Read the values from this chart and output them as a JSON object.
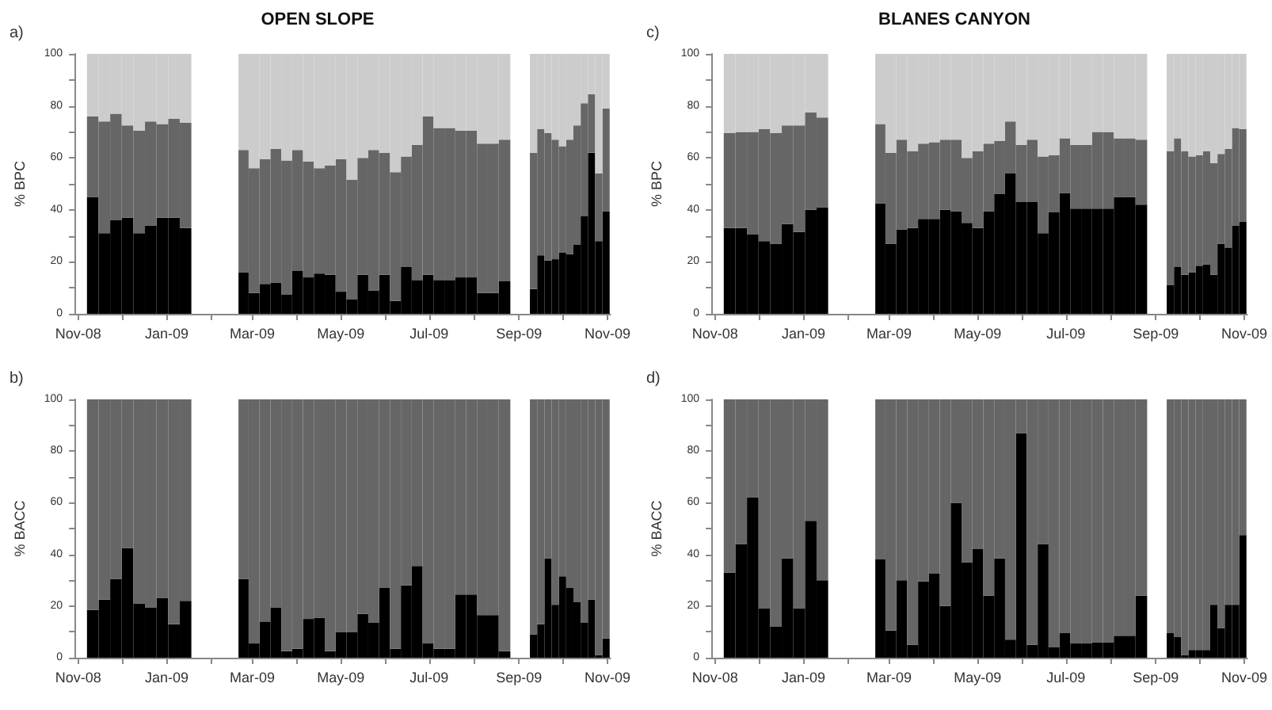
{
  "chart_data": [
    {
      "type": "bar",
      "stacked": true,
      "title": "OPEN SLOPE",
      "ylabel": "% BPC",
      "annotations": [
        "a)"
      ],
      "x": [
        "2008-11-11",
        "2008-11-19",
        "2008-11-27",
        "2008-12-05",
        "2008-12-13",
        "2008-12-21",
        "2008-12-29",
        "2009-01-06",
        "2009-01-14",
        "2009-02-23",
        "2009-03-02",
        "2009-03-10",
        "2009-03-17",
        "2009-03-25",
        "2009-04-01",
        "2009-04-09",
        "2009-04-16",
        "2009-04-24",
        "2009-05-01",
        "2009-05-09",
        "2009-05-16",
        "2009-05-24",
        "2009-05-31",
        "2009-06-08",
        "2009-06-15",
        "2009-06-23",
        "2009-06-30",
        "2009-07-08",
        "2009-07-15",
        "2009-07-23",
        "2009-07-30",
        "2009-08-07",
        "2009-08-14",
        "2009-08-22",
        "2009-09-11",
        "2009-09-16",
        "2009-09-21",
        "2009-09-26",
        "2009-10-01",
        "2009-10-06",
        "2009-10-11",
        "2009-10-16",
        "2009-10-21",
        "2009-10-26",
        "2009-10-31"
      ],
      "series": [
        {
          "color": "#000000",
          "values": [
            45,
            31,
            36,
            37,
            31,
            34,
            37,
            37,
            33,
            16,
            8,
            11.5,
            12,
            7.5,
            16.5,
            14,
            15.5,
            15,
            8.5,
            5.5,
            15,
            9,
            15,
            5,
            18,
            13,
            15,
            13,
            13,
            14,
            14,
            8,
            8,
            12.5,
            9.5,
            22.5,
            20.5,
            21,
            23.5,
            23,
            26.5,
            37.5,
            62,
            28,
            39.5
          ]
        },
        {
          "color": "#666666",
          "values": [
            31,
            43,
            41,
            35.5,
            39.5,
            40,
            36,
            38,
            40.5,
            47,
            48,
            48,
            51.5,
            51.5,
            46.5,
            44.5,
            40.5,
            42,
            51,
            46,
            45,
            54,
            47,
            49.5,
            42.5,
            52,
            61,
            58.5,
            58.5,
            56.5,
            56.5,
            57.5,
            57.5,
            54.5,
            52.5,
            48.5,
            49,
            46,
            41,
            44,
            46,
            43.5,
            22.5,
            26,
            39.5
          ]
        },
        {
          "color": "#cccccc",
          "values": [
            24,
            26,
            23,
            27.5,
            29.5,
            26,
            27,
            25,
            26.5,
            37,
            44,
            40.5,
            36.5,
            41,
            37,
            41.5,
            44,
            43,
            40.5,
            48.5,
            40,
            37,
            38,
            45.5,
            39.5,
            35,
            24,
            28.5,
            28.5,
            29.5,
            29.5,
            34.5,
            34.5,
            33,
            38,
            29,
            30.5,
            33,
            35.5,
            33,
            27.5,
            19,
            15.5,
            46,
            21
          ]
        }
      ],
      "xlim": [
        "2008-10-30",
        "2009-11-03"
      ],
      "xticks": [
        {
          "value": "2008-11-01",
          "label": "Nov-08"
        },
        {
          "value": "2008-12-01",
          "label": null
        },
        {
          "value": "2009-01-01",
          "label": "Jan-09"
        },
        {
          "value": "2009-02-01",
          "label": null
        },
        {
          "value": "2009-03-01",
          "label": "Mar-09"
        },
        {
          "value": "2009-04-01",
          "label": null
        },
        {
          "value": "2009-05-01",
          "label": "May-09"
        },
        {
          "value": "2009-06-01",
          "label": null
        },
        {
          "value": "2009-07-01",
          "label": "Jul-09"
        },
        {
          "value": "2009-08-01",
          "label": null
        },
        {
          "value": "2009-09-01",
          "label": "Sep-09"
        },
        {
          "value": "2009-10-01",
          "label": null
        },
        {
          "value": "2009-11-01",
          "label": "Nov-09"
        }
      ],
      "ylim": [
        0,
        100
      ],
      "yticks": [
        0,
        {
          "value": 10,
          "label": null
        },
        20,
        {
          "value": 30,
          "label": null
        },
        40,
        {
          "value": 50,
          "label": null
        },
        60,
        {
          "value": 70,
          "label": null
        },
        80,
        {
          "value": 90,
          "label": null
        },
        100
      ]
    },
    {
      "type": "bar",
      "stacked": true,
      "title": "BLANES CANYON",
      "ylabel": "% BPC",
      "annotations": [
        "c)"
      ],
      "x": [
        "2008-11-11",
        "2008-11-19",
        "2008-11-27",
        "2008-12-05",
        "2008-12-13",
        "2008-12-21",
        "2008-12-29",
        "2009-01-06",
        "2009-01-14",
        "2009-02-23",
        "2009-03-02",
        "2009-03-10",
        "2009-03-17",
        "2009-03-25",
        "2009-04-01",
        "2009-04-09",
        "2009-04-16",
        "2009-04-24",
        "2009-05-01",
        "2009-05-09",
        "2009-05-16",
        "2009-05-24",
        "2009-05-31",
        "2009-06-08",
        "2009-06-15",
        "2009-06-23",
        "2009-06-30",
        "2009-07-08",
        "2009-07-15",
        "2009-07-23",
        "2009-07-30",
        "2009-08-07",
        "2009-08-14",
        "2009-08-22",
        "2009-09-11",
        "2009-09-16",
        "2009-09-21",
        "2009-09-26",
        "2009-10-01",
        "2009-10-06",
        "2009-10-11",
        "2009-10-16",
        "2009-10-21",
        "2009-10-26",
        "2009-10-31"
      ],
      "series": [
        {
          "color": "#000000",
          "values": [
            33,
            33,
            30.5,
            28,
            27,
            34.5,
            31.5,
            40,
            41,
            42.5,
            27,
            32.5,
            33,
            36.5,
            36.5,
            40,
            39.5,
            35,
            33,
            39.5,
            46,
            54,
            43,
            43,
            31,
            39,
            46.5,
            40.5,
            40.5,
            40.5,
            40.5,
            45,
            45,
            42,
            11,
            18,
            15,
            16,
            18.5,
            19,
            15,
            27,
            25.5,
            34,
            35.5
          ]
        },
        {
          "color": "#666666",
          "values": [
            36.5,
            37,
            39.5,
            43,
            42.5,
            38,
            41,
            37.5,
            34.5,
            30.5,
            35,
            34.5,
            29.5,
            29,
            29.5,
            27,
            27.5,
            25,
            29.5,
            26,
            20.5,
            20,
            22,
            24,
            29.5,
            22,
            21,
            24.5,
            24.5,
            29.5,
            29.5,
            22.5,
            22.5,
            25,
            51.5,
            49.5,
            47.5,
            44.5,
            42.5,
            43.5,
            43,
            34.5,
            38,
            37.5,
            35.5
          ]
        },
        {
          "color": "#cccccc",
          "values": [
            30.5,
            30,
            30,
            29,
            30.5,
            27.5,
            27.5,
            22.5,
            24.5,
            27,
            38,
            33,
            37.5,
            34.5,
            34,
            33,
            33,
            40,
            37.5,
            34.5,
            33.5,
            26,
            35,
            33,
            39.5,
            39,
            32.5,
            35,
            35,
            30,
            30,
            32.5,
            32.5,
            33,
            37.5,
            32.5,
            37.5,
            39.5,
            39,
            37.5,
            42,
            38.5,
            36.5,
            28.5,
            29
          ]
        }
      ],
      "xlim": [
        "2008-10-30",
        "2009-11-03"
      ],
      "xticks": [
        {
          "value": "2008-11-01",
          "label": "Nov-08"
        },
        {
          "value": "2008-12-01",
          "label": null
        },
        {
          "value": "2009-01-01",
          "label": "Jan-09"
        },
        {
          "value": "2009-02-01",
          "label": null
        },
        {
          "value": "2009-03-01",
          "label": "Mar-09"
        },
        {
          "value": "2009-04-01",
          "label": null
        },
        {
          "value": "2009-05-01",
          "label": "May-09"
        },
        {
          "value": "2009-06-01",
          "label": null
        },
        {
          "value": "2009-07-01",
          "label": "Jul-09"
        },
        {
          "value": "2009-08-01",
          "label": null
        },
        {
          "value": "2009-09-01",
          "label": "Sep-09"
        },
        {
          "value": "2009-10-01",
          "label": null
        },
        {
          "value": "2009-11-01",
          "label": "Nov-09"
        }
      ],
      "ylim": [
        0,
        100
      ],
      "yticks": [
        0,
        {
          "value": 10,
          "label": null
        },
        20,
        {
          "value": 30,
          "label": null
        },
        40,
        {
          "value": 50,
          "label": null
        },
        60,
        {
          "value": 70,
          "label": null
        },
        80,
        {
          "value": 90,
          "label": null
        },
        100
      ]
    },
    {
      "type": "bar",
      "stacked": true,
      "ylabel": "% BACC",
      "annotations": [
        "b)"
      ],
      "x": [
        "2008-11-11",
        "2008-11-19",
        "2008-11-27",
        "2008-12-05",
        "2008-12-13",
        "2008-12-21",
        "2008-12-29",
        "2009-01-06",
        "2009-01-14",
        "2009-02-23",
        "2009-03-02",
        "2009-03-10",
        "2009-03-17",
        "2009-03-25",
        "2009-04-01",
        "2009-04-09",
        "2009-04-16",
        "2009-04-24",
        "2009-05-01",
        "2009-05-09",
        "2009-05-16",
        "2009-05-24",
        "2009-05-31",
        "2009-06-08",
        "2009-06-15",
        "2009-06-23",
        "2009-06-30",
        "2009-07-08",
        "2009-07-15",
        "2009-07-23",
        "2009-07-30",
        "2009-08-07",
        "2009-08-14",
        "2009-08-22",
        "2009-09-11",
        "2009-09-16",
        "2009-09-21",
        "2009-09-26",
        "2009-10-01",
        "2009-10-06",
        "2009-10-11",
        "2009-10-16",
        "2009-10-21",
        "2009-10-26",
        "2009-10-31"
      ],
      "series": [
        {
          "color": "#000000",
          "values": [
            18.5,
            22.5,
            30.5,
            42.5,
            21,
            19.5,
            23,
            13,
            22,
            30.5,
            5.5,
            14,
            19.5,
            2.5,
            3.5,
            15,
            15.5,
            2.5,
            10,
            10,
            17,
            13.5,
            27,
            3.5,
            28,
            35.5,
            5.5,
            3.5,
            3.5,
            24.5,
            24.5,
            16.5,
            16.5,
            2.5,
            9,
            13,
            38.5,
            20.5,
            31.5,
            27,
            21.5,
            13.5,
            22.5,
            1,
            7.5
          ]
        },
        {
          "color": "#666666",
          "values": [
            81.5,
            77.5,
            69.5,
            57.5,
            79,
            80.5,
            77,
            87,
            78,
            69.5,
            94.5,
            86,
            80.5,
            97.5,
            96.5,
            85,
            84.5,
            97.5,
            90,
            90,
            83,
            86.5,
            73,
            96.5,
            72,
            64.5,
            94.5,
            96.5,
            96.5,
            75.5,
            75.5,
            83.5,
            83.5,
            97.5,
            91,
            87,
            61.5,
            79.5,
            68.5,
            73,
            78.5,
            86.5,
            77.5,
            99,
            92.5
          ]
        }
      ],
      "xlim": [
        "2008-10-30",
        "2009-11-03"
      ],
      "xticks": [
        {
          "value": "2008-11-01",
          "label": "Nov-08"
        },
        {
          "value": "2008-12-01",
          "label": null
        },
        {
          "value": "2009-01-01",
          "label": "Jan-09"
        },
        {
          "value": "2009-02-01",
          "label": null
        },
        {
          "value": "2009-03-01",
          "label": "Mar-09"
        },
        {
          "value": "2009-04-01",
          "label": null
        },
        {
          "value": "2009-05-01",
          "label": "May-09"
        },
        {
          "value": "2009-06-01",
          "label": null
        },
        {
          "value": "2009-07-01",
          "label": "Jul-09"
        },
        {
          "value": "2009-08-01",
          "label": null
        },
        {
          "value": "2009-09-01",
          "label": "Sep-09"
        },
        {
          "value": "2009-10-01",
          "label": null
        },
        {
          "value": "2009-11-01",
          "label": "Nov-09"
        }
      ],
      "ylim": [
        0,
        100
      ],
      "yticks": [
        0,
        {
          "value": 10,
          "label": null
        },
        20,
        {
          "value": 30,
          "label": null
        },
        40,
        {
          "value": 50,
          "label": null
        },
        60,
        {
          "value": 70,
          "label": null
        },
        80,
        {
          "value": 90,
          "label": null
        },
        100
      ]
    },
    {
      "type": "bar",
      "stacked": true,
      "ylabel": "% BACC",
      "annotations": [
        "d)"
      ],
      "x": [
        "2008-11-11",
        "2008-11-19",
        "2008-11-27",
        "2008-12-05",
        "2008-12-13",
        "2008-12-21",
        "2008-12-29",
        "2009-01-06",
        "2009-01-14",
        "2009-02-23",
        "2009-03-02",
        "2009-03-10",
        "2009-03-17",
        "2009-03-25",
        "2009-04-01",
        "2009-04-09",
        "2009-04-16",
        "2009-04-24",
        "2009-05-01",
        "2009-05-09",
        "2009-05-16",
        "2009-05-24",
        "2009-05-31",
        "2009-06-08",
        "2009-06-15",
        "2009-06-23",
        "2009-06-30",
        "2009-07-08",
        "2009-07-15",
        "2009-07-23",
        "2009-07-30",
        "2009-08-07",
        "2009-08-14",
        "2009-08-22",
        "2009-09-11",
        "2009-09-16",
        "2009-09-21",
        "2009-09-26",
        "2009-10-01",
        "2009-10-06",
        "2009-10-11",
        "2009-10-16",
        "2009-10-21",
        "2009-10-26",
        "2009-10-31"
      ],
      "series": [
        {
          "color": "#000000",
          "values": [
            33,
            44,
            62,
            19,
            12,
            38.5,
            19,
            53,
            30,
            38,
            10.5,
            30,
            5,
            29.5,
            32.5,
            20,
            60,
            37,
            42,
            24,
            38.5,
            7,
            87,
            5,
            44,
            4,
            9.5,
            5.5,
            5.5,
            6,
            6,
            8.5,
            8.5,
            24,
            9.5,
            8,
            1,
            3,
            3,
            3,
            20.5,
            11.5,
            20.5,
            20.5,
            47.5
          ]
        },
        {
          "color": "#666666",
          "values": [
            67,
            56,
            38,
            81,
            88,
            61.5,
            81,
            47,
            70,
            62,
            89.5,
            70,
            95,
            70.5,
            67.5,
            80,
            40,
            63,
            58,
            76,
            61.5,
            93,
            13,
            95,
            56,
            96,
            90.5,
            94.5,
            94.5,
            94,
            94,
            91.5,
            91.5,
            76,
            90.5,
            92,
            99,
            97,
            97,
            97,
            79.5,
            88.5,
            79.5,
            79.5,
            52.5
          ]
        }
      ],
      "xlim": [
        "2008-10-30",
        "2009-11-03"
      ],
      "xticks": [
        {
          "value": "2008-11-01",
          "label": "Nov-08"
        },
        {
          "value": "2008-12-01",
          "label": null
        },
        {
          "value": "2009-01-01",
          "label": "Jan-09"
        },
        {
          "value": "2009-02-01",
          "label": null
        },
        {
          "value": "2009-03-01",
          "label": "Mar-09"
        },
        {
          "value": "2009-04-01",
          "label": null
        },
        {
          "value": "2009-05-01",
          "label": "May-09"
        },
        {
          "value": "2009-06-01",
          "label": null
        },
        {
          "value": "2009-07-01",
          "label": "Jul-09"
        },
        {
          "value": "2009-08-01",
          "label": null
        },
        {
          "value": "2009-09-01",
          "label": "Sep-09"
        },
        {
          "value": "2009-10-01",
          "label": null
        },
        {
          "value": "2009-11-01",
          "label": "Nov-09"
        }
      ],
      "ylim": [
        0,
        100
      ],
      "yticks": [
        0,
        {
          "value": 10,
          "label": null
        },
        20,
        {
          "value": 30,
          "label": null
        },
        40,
        {
          "value": 50,
          "label": null
        },
        60,
        {
          "value": 70,
          "label": null
        },
        80,
        {
          "value": 90,
          "label": null
        },
        100
      ]
    }
  ]
}
